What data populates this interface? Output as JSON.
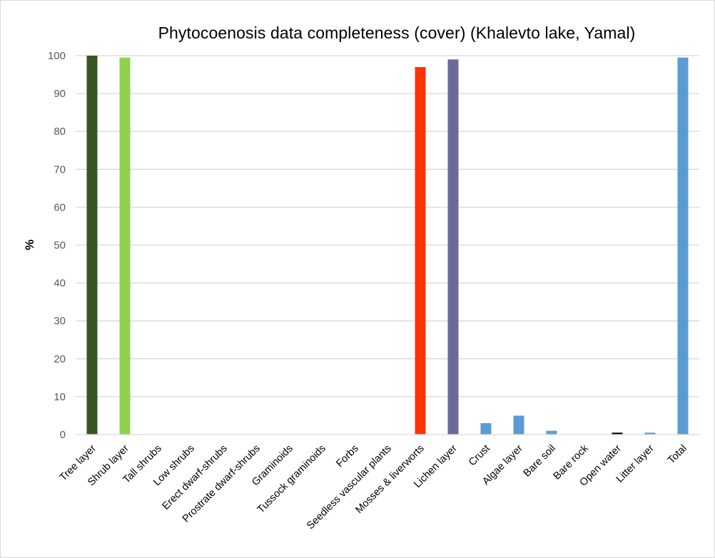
{
  "chart_data": {
    "type": "bar",
    "title": "Phytocoenosis  data completeness (cover) (Khalevto lake, Yamal)",
    "xlabel": "",
    "ylabel": "%",
    "ylim": [
      0,
      100
    ],
    "yticks": [
      0,
      10,
      20,
      30,
      40,
      50,
      60,
      70,
      80,
      90,
      100
    ],
    "grid": true,
    "legend": "none",
    "categories": [
      "Tree layer",
      "Shrub layer",
      "Tall shrubs",
      "Low shrubs",
      "Erect dwarf-shrubs",
      "Prostrate dwarf-shrubs",
      "Graminoids",
      "Tussock graminoids",
      "Forbs",
      "Seedless vascular plants",
      "Mosses & liverworts",
      "Lichen layer",
      "Crust",
      "Algae layer",
      "Bare soil",
      "Bare rock",
      "Open water",
      "Litter layer",
      "Total"
    ],
    "values": [
      100,
      99.5,
      0,
      0,
      0,
      0,
      0,
      0,
      0,
      0,
      97,
      99,
      3,
      5,
      1,
      0,
      0.5,
      0.5,
      99.5
    ],
    "colors": [
      "#375623",
      "#92d050",
      "#5b9bd5",
      "#5b9bd5",
      "#5b9bd5",
      "#5b9bd5",
      "#5b9bd5",
      "#5b9bd5",
      "#5b9bd5",
      "#5b9bd5",
      "#ff3300",
      "#6b6b9b",
      "#5b9bd5",
      "#5b9bd5",
      "#5b9bd5",
      "#5b9bd5",
      "#000000",
      "#5b9bd5",
      "#5b9bd5"
    ],
    "gridline_color": "#d9d9d9",
    "axis_color": "#d9d9d9"
  }
}
